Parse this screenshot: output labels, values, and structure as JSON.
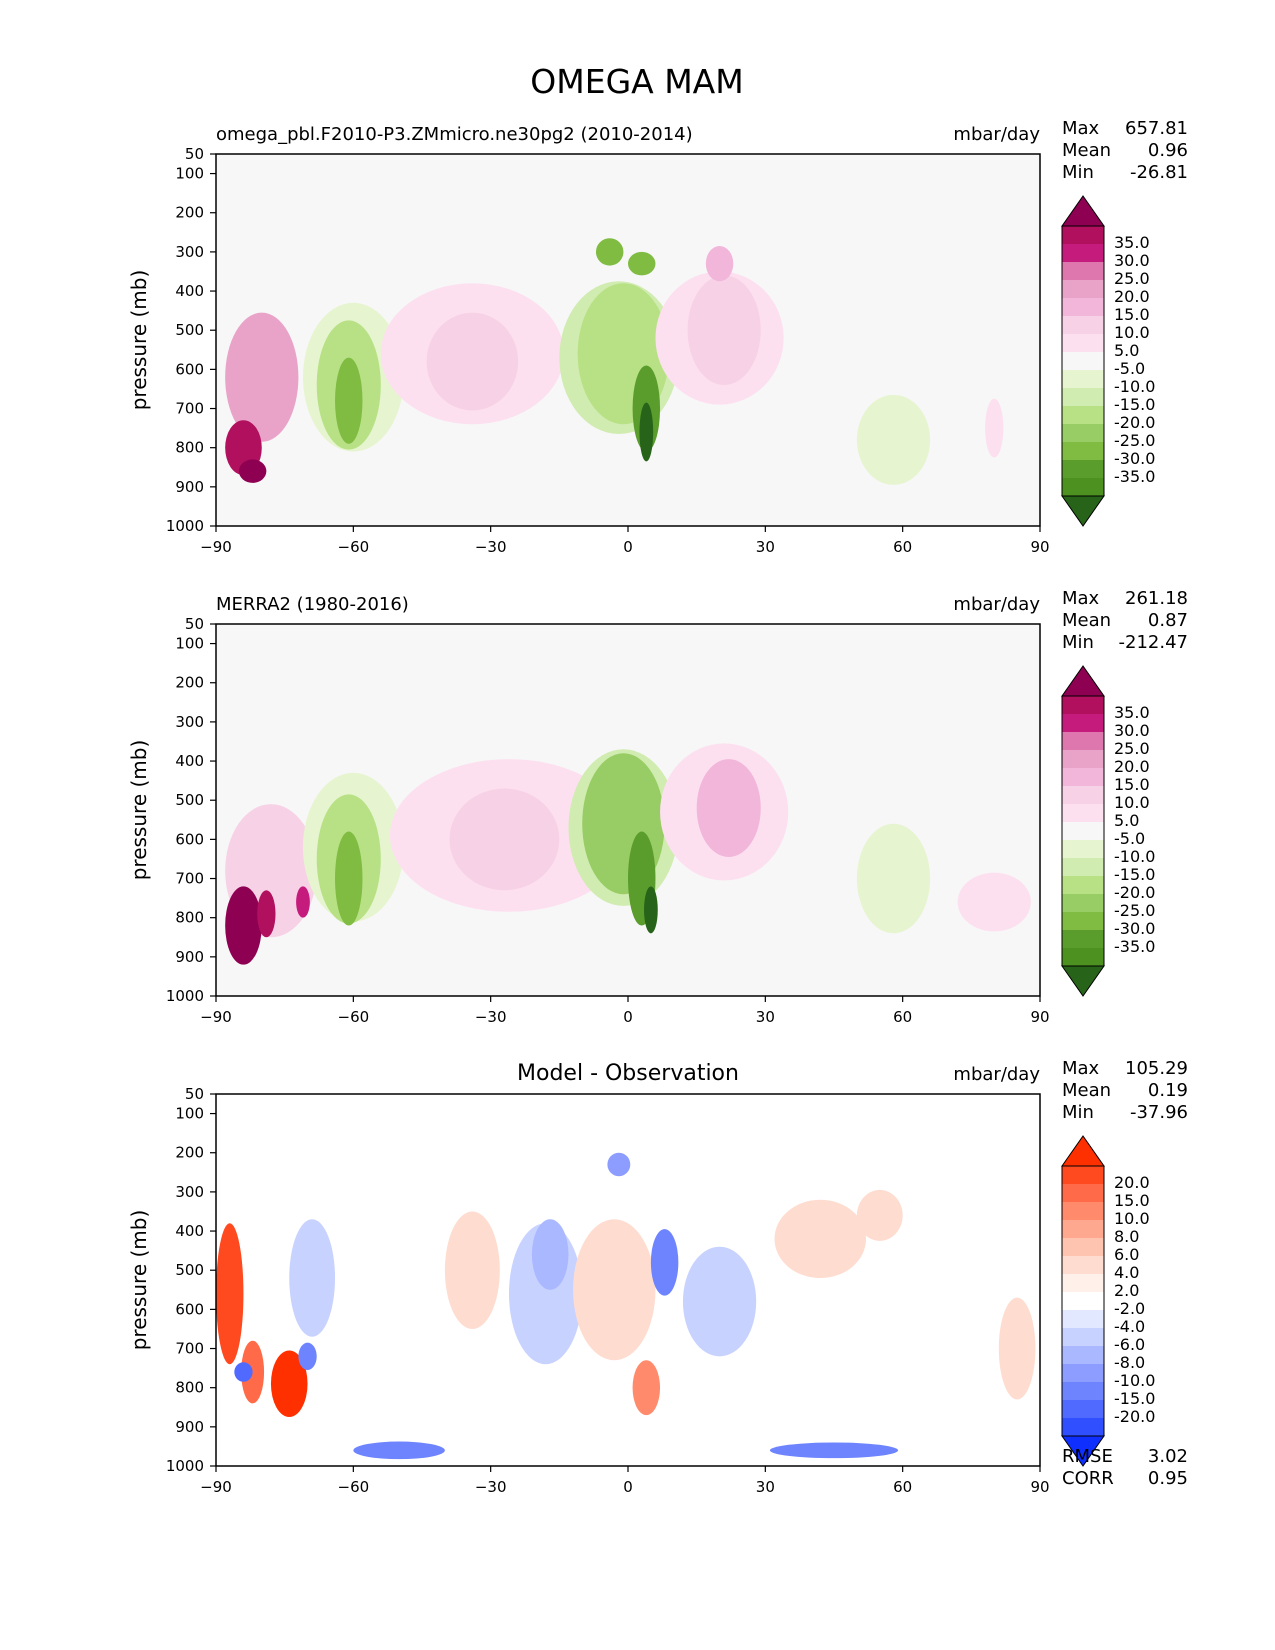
{
  "figure": {
    "title": "OMEGA MAM"
  },
  "chart_data": [
    {
      "type": "heatmap",
      "title_left": "omega_pbl.F2010-P3.ZMmicro.ne30pg2 (2010-2014)",
      "title_center": "",
      "units": "mbar/day",
      "ylabel": "pressure (mb)",
      "xlabel": "",
      "xlim": [
        -90,
        90
      ],
      "ylim": [
        1000,
        50
      ],
      "x_ticks": [
        "−90",
        "−60",
        "−30",
        "0",
        "30",
        "60",
        "90"
      ],
      "y_ticks": [
        "50",
        "100",
        "200",
        "300",
        "400",
        "500",
        "600",
        "700",
        "800",
        "900",
        "1000"
      ],
      "stats": [
        {
          "label": "Max",
          "value": "657.81"
        },
        {
          "label": "Mean",
          "value": "0.96"
        },
        {
          "label": "Min",
          "value": "-26.81"
        }
      ],
      "colorbar": {
        "labels": [
          "35.0",
          "30.0",
          "25.0",
          "20.0",
          "15.0",
          "10.0",
          "5.0",
          "-5.0",
          "-10.0",
          "-15.0",
          "-20.0",
          "-25.0",
          "-30.0",
          "-35.0"
        ],
        "colors": [
          "#8e0152",
          "#b0105e",
          "#c51b7d",
          "#de77ae",
          "#e9a3c9",
          "#f1b6da",
          "#f7d2e6",
          "#fde0ef",
          "#f7f7f7",
          "#e6f5d0",
          "#d0ecb0",
          "#b8e186",
          "#98cc64",
          "#7fbc41",
          "#5a9d2d",
          "#4d9221",
          "#276419"
        ]
      },
      "footer": []
    },
    {
      "type": "heatmap",
      "title_left": "MERRA2 (1980-2016)",
      "title_center": "",
      "units": "mbar/day",
      "ylabel": "pressure (mb)",
      "xlabel": "",
      "xlim": [
        -90,
        90
      ],
      "ylim": [
        1000,
        50
      ],
      "x_ticks": [
        "−90",
        "−60",
        "−30",
        "0",
        "30",
        "60",
        "90"
      ],
      "y_ticks": [
        "50",
        "100",
        "200",
        "300",
        "400",
        "500",
        "600",
        "700",
        "800",
        "900",
        "1000"
      ],
      "stats": [
        {
          "label": "Max",
          "value": "261.18"
        },
        {
          "label": "Mean",
          "value": "0.87"
        },
        {
          "label": "Min",
          "value": "-212.47"
        }
      ],
      "colorbar": {
        "labels": [
          "35.0",
          "30.0",
          "25.0",
          "20.0",
          "15.0",
          "10.0",
          "5.0",
          "-5.0",
          "-10.0",
          "-15.0",
          "-20.0",
          "-25.0",
          "-30.0",
          "-35.0"
        ],
        "colors": [
          "#8e0152",
          "#b0105e",
          "#c51b7d",
          "#de77ae",
          "#e9a3c9",
          "#f1b6da",
          "#f7d2e6",
          "#fde0ef",
          "#f7f7f7",
          "#e6f5d0",
          "#d0ecb0",
          "#b8e186",
          "#98cc64",
          "#7fbc41",
          "#5a9d2d",
          "#4d9221",
          "#276419"
        ]
      },
      "footer": []
    },
    {
      "type": "heatmap",
      "title_left": "",
      "title_center": "Model - Observation",
      "units": "mbar/day",
      "ylabel": "pressure (mb)",
      "xlabel": "",
      "xlim": [
        -90,
        90
      ],
      "ylim": [
        1000,
        50
      ],
      "x_ticks": [
        "−90",
        "−60",
        "−30",
        "0",
        "30",
        "60",
        "90"
      ],
      "y_ticks": [
        "50",
        "100",
        "200",
        "300",
        "400",
        "500",
        "600",
        "700",
        "800",
        "900",
        "1000"
      ],
      "stats": [
        {
          "label": "Max",
          "value": "105.29"
        },
        {
          "label": "Mean",
          "value": "0.19"
        },
        {
          "label": "Min",
          "value": "-37.96"
        }
      ],
      "colorbar": {
        "labels": [
          "20.0",
          "15.0",
          "10.0",
          "8.0",
          "6.0",
          "4.0",
          "2.0",
          "-2.0",
          "-4.0",
          "-6.0",
          "-8.0",
          "-10.0",
          "-15.0",
          "-20.0"
        ],
        "colors": [
          "#ff3000",
          "#ff4a20",
          "#ff6a48",
          "#ff8a6c",
          "#ffa890",
          "#ffc4b0",
          "#ffdcd0",
          "#fff0ea",
          "#ffffff",
          "#e2e8ff",
          "#c8d2ff",
          "#aab8ff",
          "#8c9dff",
          "#6e84ff",
          "#506aff",
          "#3050ff",
          "#0f2fff"
        ]
      },
      "footer": [
        {
          "label": "RMSE",
          "value": "3.02"
        },
        {
          "label": "CORR",
          "value": "0.95"
        }
      ]
    }
  ]
}
